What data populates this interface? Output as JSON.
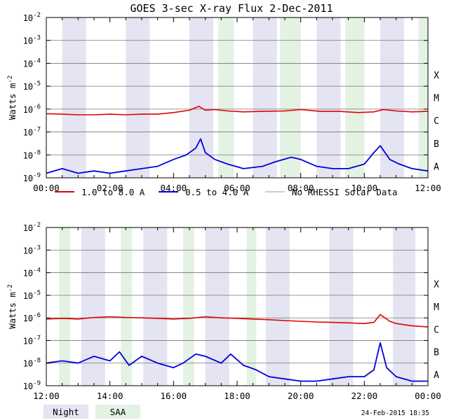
{
  "title": "GOES 3-sec X-ray Flux    2-Dec-2011",
  "ylabel": "Watts m",
  "ylabel_sup": "-2",
  "timestamp": "24-Feb-2015 18:35",
  "legend": {
    "low": "1.0 to 8.0 A",
    "high": "0.5 to 4.0 A",
    "gray": "No RHESSI Solar Data",
    "night": "Night",
    "saa": "SAA"
  },
  "colors": {
    "low": "#e00000",
    "high": "#0000e0",
    "gray": "#999999",
    "night": "#e4e4f2",
    "saa": "#e4f2e4"
  },
  "flare_classes": [
    "X",
    "M",
    "C",
    "B",
    "A"
  ],
  "chart_data": [
    {
      "type": "line",
      "title": "GOES 3-sec X-ray Flux    2-Dec-2011",
      "ylabel": "Watts m^-2",
      "xlabel": "",
      "xlim": [
        0,
        12
      ],
      "ylim_exponent": [
        -9,
        -2
      ],
      "yscale": "log",
      "x_tick_labels": [
        "00:00",
        "02:00",
        "04:00",
        "06:00",
        "08:00",
        "10:00",
        "12:00"
      ],
      "y_tick_exponents": [
        -9,
        -8,
        -7,
        -6,
        -5,
        -4,
        -3,
        -2
      ],
      "grid": true,
      "night_bands_hours": [
        [
          0.5,
          1.25
        ],
        [
          2.5,
          3.25
        ],
        [
          4.5,
          5.25
        ],
        [
          6.5,
          7.25
        ],
        [
          8.5,
          9.25
        ],
        [
          10.5,
          11.25
        ]
      ],
      "saa_bands_hours": [
        [
          5.4,
          5.9
        ],
        [
          7.35,
          8.0
        ],
        [
          9.4,
          10.0
        ],
        [
          11.7,
          12.0
        ]
      ],
      "series": [
        {
          "name": "1.0 to 8.0 A",
          "x": [
            0,
            0.5,
            1.0,
            1.5,
            2.0,
            2.5,
            3.0,
            3.5,
            4.0,
            4.5,
            4.8,
            5.0,
            5.3,
            5.7,
            6.2,
            6.8,
            7.5,
            8.0,
            8.6,
            9.2,
            9.8,
            10.3,
            10.6,
            11.0,
            11.5,
            12.0
          ],
          "y_exponent": [
            -6.2,
            -6.22,
            -6.25,
            -6.25,
            -6.22,
            -6.25,
            -6.22,
            -6.22,
            -6.15,
            -6.05,
            -5.88,
            -6.05,
            -6.02,
            -6.08,
            -6.12,
            -6.1,
            -6.08,
            -6.02,
            -6.1,
            -6.1,
            -6.15,
            -6.12,
            -6.02,
            -6.08,
            -6.12,
            -6.1
          ]
        },
        {
          "name": "0.5 to 4.0 A",
          "x": [
            0,
            0.5,
            1.0,
            1.5,
            2.0,
            2.5,
            3.0,
            3.5,
            4.0,
            4.4,
            4.7,
            4.85,
            5.0,
            5.3,
            5.7,
            6.2,
            6.8,
            7.2,
            7.7,
            8.0,
            8.5,
            9.0,
            9.5,
            10.0,
            10.3,
            10.5,
            10.8,
            11.1,
            11.5,
            12.0
          ],
          "y_exponent": [
            -8.8,
            -8.6,
            -8.8,
            -8.7,
            -8.8,
            -8.7,
            -8.6,
            -8.5,
            -8.2,
            -8.0,
            -7.7,
            -7.3,
            -7.9,
            -8.2,
            -8.4,
            -8.6,
            -8.5,
            -8.3,
            -8.1,
            -8.2,
            -8.5,
            -8.6,
            -8.6,
            -8.4,
            -7.9,
            -7.6,
            -8.2,
            -8.4,
            -8.6,
            -8.7
          ]
        }
      ]
    },
    {
      "type": "line",
      "title": "",
      "ylabel": "Watts m^-2",
      "xlabel": "",
      "xlim": [
        12,
        24
      ],
      "ylim_exponent": [
        -9,
        -2
      ],
      "yscale": "log",
      "x_tick_labels": [
        "12:00",
        "14:00",
        "16:00",
        "18:00",
        "20:00",
        "22:00",
        "00:00"
      ],
      "y_tick_exponents": [
        -9,
        -8,
        -7,
        -6,
        -5,
        -4,
        -3,
        -2
      ],
      "grid": true,
      "night_bands_hours": [
        [
          13.1,
          13.85
        ],
        [
          15.05,
          15.8
        ],
        [
          17.0,
          17.75
        ],
        [
          18.9,
          19.65
        ],
        [
          20.9,
          21.65
        ],
        [
          22.9,
          23.6
        ]
      ],
      "saa_bands_hours": [
        [
          12.4,
          12.75
        ],
        [
          14.35,
          14.7
        ],
        [
          16.3,
          16.65
        ],
        [
          18.3,
          18.6
        ]
      ],
      "series": [
        {
          "name": "1.0 to 8.0 A",
          "x": [
            12,
            12.5,
            13.0,
            13.5,
            14.0,
            14.5,
            15.0,
            15.5,
            16.0,
            16.5,
            17.0,
            17.5,
            18.0,
            18.5,
            19.0,
            19.5,
            20.0,
            20.5,
            21.0,
            21.5,
            22.0,
            22.3,
            22.5,
            22.8,
            23.0,
            23.5,
            24.0
          ],
          "y_exponent": [
            -6.05,
            -6.02,
            -6.05,
            -5.98,
            -5.95,
            -5.98,
            -6.0,
            -6.02,
            -6.05,
            -6.02,
            -5.95,
            -6.0,
            -6.02,
            -6.05,
            -6.08,
            -6.12,
            -6.15,
            -6.18,
            -6.2,
            -6.22,
            -6.25,
            -6.2,
            -5.85,
            -6.15,
            -6.25,
            -6.35,
            -6.4
          ]
        },
        {
          "name": "0.5 to 4.0 A",
          "x": [
            12,
            12.5,
            13.0,
            13.5,
            14.0,
            14.3,
            14.6,
            15.0,
            15.5,
            16.0,
            16.3,
            16.7,
            17.0,
            17.5,
            17.8,
            18.2,
            18.6,
            19.0,
            19.5,
            20.0,
            20.5,
            21.0,
            21.5,
            22.0,
            22.3,
            22.5,
            22.7,
            23.0,
            23.5,
            24.0
          ],
          "y_exponent": [
            -8.0,
            -7.9,
            -8.0,
            -7.7,
            -7.9,
            -7.5,
            -8.1,
            -7.7,
            -8.0,
            -8.2,
            -8.0,
            -7.6,
            -7.7,
            -8.0,
            -7.6,
            -8.1,
            -8.3,
            -8.6,
            -8.7,
            -8.8,
            -8.8,
            -8.7,
            -8.6,
            -8.6,
            -8.3,
            -7.1,
            -8.2,
            -8.6,
            -8.8,
            -8.8
          ]
        }
      ]
    }
  ]
}
